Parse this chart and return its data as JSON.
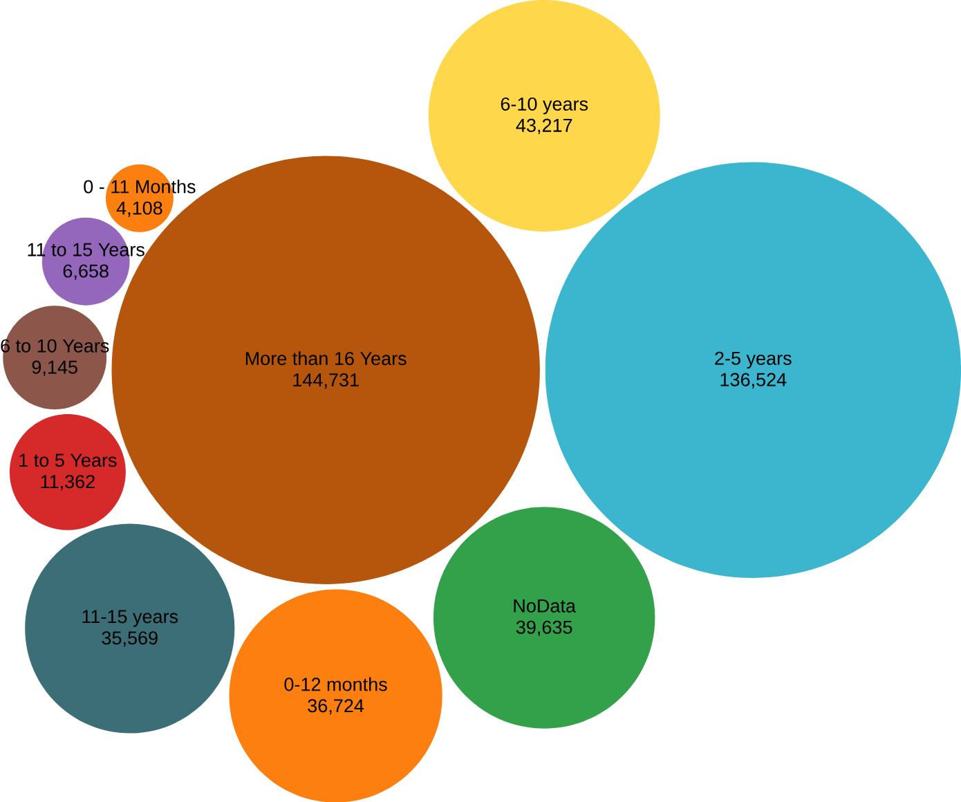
{
  "chart_data": {
    "type": "other",
    "categories": [
      "More than 16 Years",
      "2-5 years",
      "6-10 years",
      "NoData",
      "0-12 months",
      "11-15 years",
      "1 to 5 Years",
      "6 to 10 Years",
      "11 to 15 Years",
      "0 - 11 Months"
    ],
    "values": [
      144731,
      136524,
      43217,
      39635,
      36724,
      35569,
      11362,
      9145,
      6658,
      4108
    ],
    "value_labels": [
      "144,731",
      "136,524",
      "43,217",
      "39,635",
      "36,724",
      "35,569",
      "11,362",
      "9,145",
      "6,658",
      "4,108"
    ],
    "colors": [
      "#b5560c",
      "#3cb6ce",
      "#fed84a",
      "#33a04a",
      "#fd7f10",
      "#3b6e76",
      "#d62a2a",
      "#8c564b",
      "#9467bd",
      "#fd7f10"
    ]
  }
}
